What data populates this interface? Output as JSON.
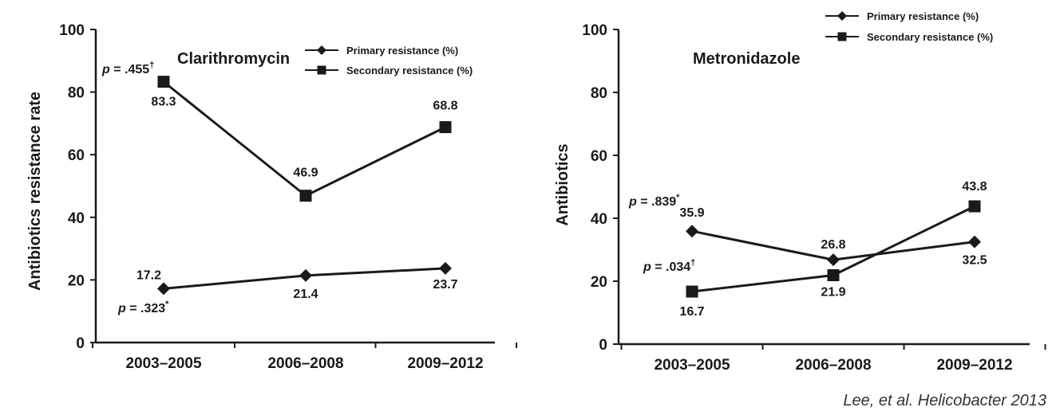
{
  "chart_data": [
    {
      "type": "line",
      "title": "Clarithromycin",
      "ylabel": "Antibiotics resistance rate",
      "xlabel": "",
      "categories": [
        "2003–2005",
        "2006–2008",
        "2009–2012"
      ],
      "ylim": [
        0,
        100
      ],
      "yticks": [
        "0",
        "20",
        "40",
        "60",
        "80",
        "100"
      ],
      "legend_position": "top-right",
      "series": [
        {
          "name": "Primary resistance (%)",
          "marker": "diamond",
          "values": [
            17.2,
            21.4,
            23.7
          ],
          "labels": [
            "17.2",
            "21.4",
            "23.7"
          ]
        },
        {
          "name": "Secondary resistance (%)",
          "marker": "square",
          "values": [
            83.3,
            46.9,
            68.8
          ],
          "labels": [
            "83.3",
            "46.9",
            "68.8"
          ]
        }
      ],
      "annotations": [
        {
          "prefix": "p",
          "text": " = .455",
          "mark": "†"
        },
        {
          "prefix": "p",
          "text": " = .323",
          "mark": "*"
        }
      ]
    },
    {
      "type": "line",
      "title": "Metronidazole",
      "ylabel": "Antibiotics",
      "xlabel": "",
      "categories": [
        "2003–2005",
        "2006–2008",
        "2009–2012"
      ],
      "ylim": [
        0,
        100
      ],
      "yticks": [
        "0",
        "20",
        "40",
        "60",
        "80",
        "100"
      ],
      "legend_position": "top-right",
      "series": [
        {
          "name": "Primary resistance (%)",
          "marker": "diamond",
          "values": [
            35.9,
            26.8,
            32.5
          ],
          "labels": [
            "35.9",
            "26.8",
            "32.5"
          ]
        },
        {
          "name": "Secondary resistance (%)",
          "marker": "square",
          "values": [
            16.7,
            21.9,
            43.8
          ],
          "labels": [
            "16.7",
            "21.9",
            "43.8"
          ]
        }
      ],
      "annotations": [
        {
          "prefix": "p",
          "text": " = .839",
          "mark": "*"
        },
        {
          "prefix": "p",
          "text": " = .034",
          "mark": "†"
        }
      ]
    }
  ],
  "credit": "Lee, et al. Helicobacter 2013",
  "colors": {
    "ink": "#1a1a1a",
    "background": "#ffffff"
  }
}
